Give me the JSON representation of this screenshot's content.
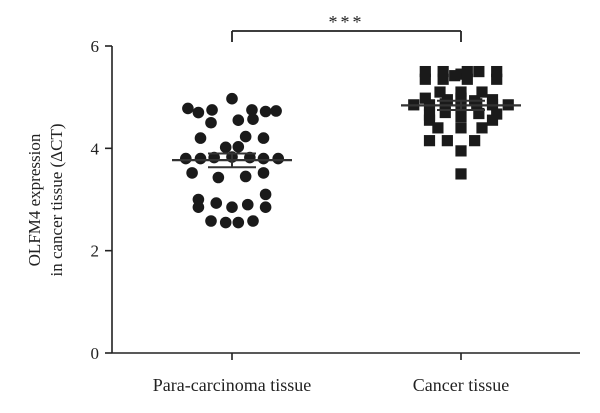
{
  "chart_data": {
    "type": "scatter",
    "title": "",
    "ylabel_lines": [
      "OLFM4 expression",
      "in cancer tissue (ΔCT)"
    ],
    "xlabel": "",
    "ylim": [
      0,
      6
    ],
    "yticks": [
      "0",
      "2",
      "4",
      "6"
    ],
    "categories": [
      "Para-carcinoma tissue",
      "Cancer tissue"
    ],
    "significance": "***",
    "colors": {
      "axis": "#222222",
      "points": "#1a1a1a",
      "lines": "#333333"
    },
    "series": [
      {
        "category": "Para-carcinoma tissue",
        "marker": "circle",
        "mean": 3.77,
        "sem": [
          3.63,
          3.9
        ],
        "points": [
          {
            "x": -0.42,
            "y": 4.78
          },
          {
            "x": -0.32,
            "y": 4.7
          },
          {
            "x": -0.19,
            "y": 4.75
          },
          {
            "x": 0.0,
            "y": 4.97
          },
          {
            "x": 0.19,
            "y": 4.75
          },
          {
            "x": 0.32,
            "y": 4.72
          },
          {
            "x": 0.42,
            "y": 4.73
          },
          {
            "x": -0.2,
            "y": 4.5
          },
          {
            "x": 0.06,
            "y": 4.55
          },
          {
            "x": 0.2,
            "y": 4.57
          },
          {
            "x": -0.3,
            "y": 4.2
          },
          {
            "x": 0.13,
            "y": 4.23
          },
          {
            "x": 0.3,
            "y": 4.2
          },
          {
            "x": -0.06,
            "y": 4.02
          },
          {
            "x": 0.06,
            "y": 4.03
          },
          {
            "x": -0.44,
            "y": 3.8
          },
          {
            "x": -0.3,
            "y": 3.8
          },
          {
            "x": -0.17,
            "y": 3.82
          },
          {
            "x": 0.0,
            "y": 3.83
          },
          {
            "x": 0.17,
            "y": 3.82
          },
          {
            "x": 0.3,
            "y": 3.8
          },
          {
            "x": 0.44,
            "y": 3.8
          },
          {
            "x": -0.38,
            "y": 3.52
          },
          {
            "x": -0.13,
            "y": 3.43
          },
          {
            "x": 0.13,
            "y": 3.45
          },
          {
            "x": 0.3,
            "y": 3.52
          },
          {
            "x": -0.32,
            "y": 3.0
          },
          {
            "x": 0.32,
            "y": 3.1
          },
          {
            "x": -0.32,
            "y": 2.85
          },
          {
            "x": -0.15,
            "y": 2.93
          },
          {
            "x": 0.0,
            "y": 2.85
          },
          {
            "x": 0.15,
            "y": 2.9
          },
          {
            "x": 0.32,
            "y": 2.85
          },
          {
            "x": -0.2,
            "y": 2.58
          },
          {
            "x": -0.06,
            "y": 2.55
          },
          {
            "x": 0.06,
            "y": 2.55
          },
          {
            "x": 0.2,
            "y": 2.58
          }
        ]
      },
      {
        "category": "Cancer tissue",
        "marker": "square",
        "mean": 4.84,
        "sem": [
          4.75,
          4.93
        ],
        "points": [
          {
            "x": -0.34,
            "y": 5.5
          },
          {
            "x": -0.17,
            "y": 5.5
          },
          {
            "x": -0.06,
            "y": 5.42
          },
          {
            "x": 0.0,
            "y": 5.45
          },
          {
            "x": 0.06,
            "y": 5.5
          },
          {
            "x": 0.17,
            "y": 5.5
          },
          {
            "x": 0.34,
            "y": 5.5
          },
          {
            "x": -0.34,
            "y": 5.35
          },
          {
            "x": -0.17,
            "y": 5.35
          },
          {
            "x": 0.06,
            "y": 5.35
          },
          {
            "x": 0.34,
            "y": 5.35
          },
          {
            "x": -0.2,
            "y": 5.1
          },
          {
            "x": 0.0,
            "y": 5.1
          },
          {
            "x": 0.2,
            "y": 5.1
          },
          {
            "x": -0.34,
            "y": 4.98
          },
          {
            "x": -0.13,
            "y": 4.95
          },
          {
            "x": 0.0,
            "y": 4.98
          },
          {
            "x": 0.13,
            "y": 4.93
          },
          {
            "x": 0.3,
            "y": 4.95
          },
          {
            "x": -0.45,
            "y": 4.85
          },
          {
            "x": -0.3,
            "y": 4.85
          },
          {
            "x": -0.15,
            "y": 4.87
          },
          {
            "x": 0.0,
            "y": 4.87
          },
          {
            "x": 0.15,
            "y": 4.87
          },
          {
            "x": 0.3,
            "y": 4.85
          },
          {
            "x": 0.45,
            "y": 4.85
          },
          {
            "x": -0.3,
            "y": 4.65
          },
          {
            "x": -0.15,
            "y": 4.7
          },
          {
            "x": 0.0,
            "y": 4.62
          },
          {
            "x": 0.17,
            "y": 4.68
          },
          {
            "x": 0.34,
            "y": 4.67
          },
          {
            "x": -0.3,
            "y": 4.55
          },
          {
            "x": 0.3,
            "y": 4.55
          },
          {
            "x": -0.22,
            "y": 4.4
          },
          {
            "x": 0.0,
            "y": 4.4
          },
          {
            "x": 0.2,
            "y": 4.4
          },
          {
            "x": -0.3,
            "y": 4.15
          },
          {
            "x": -0.13,
            "y": 4.15
          },
          {
            "x": 0.13,
            "y": 4.15
          },
          {
            "x": 0.0,
            "y": 3.95
          },
          {
            "x": 0.0,
            "y": 3.5
          }
        ]
      }
    ]
  }
}
